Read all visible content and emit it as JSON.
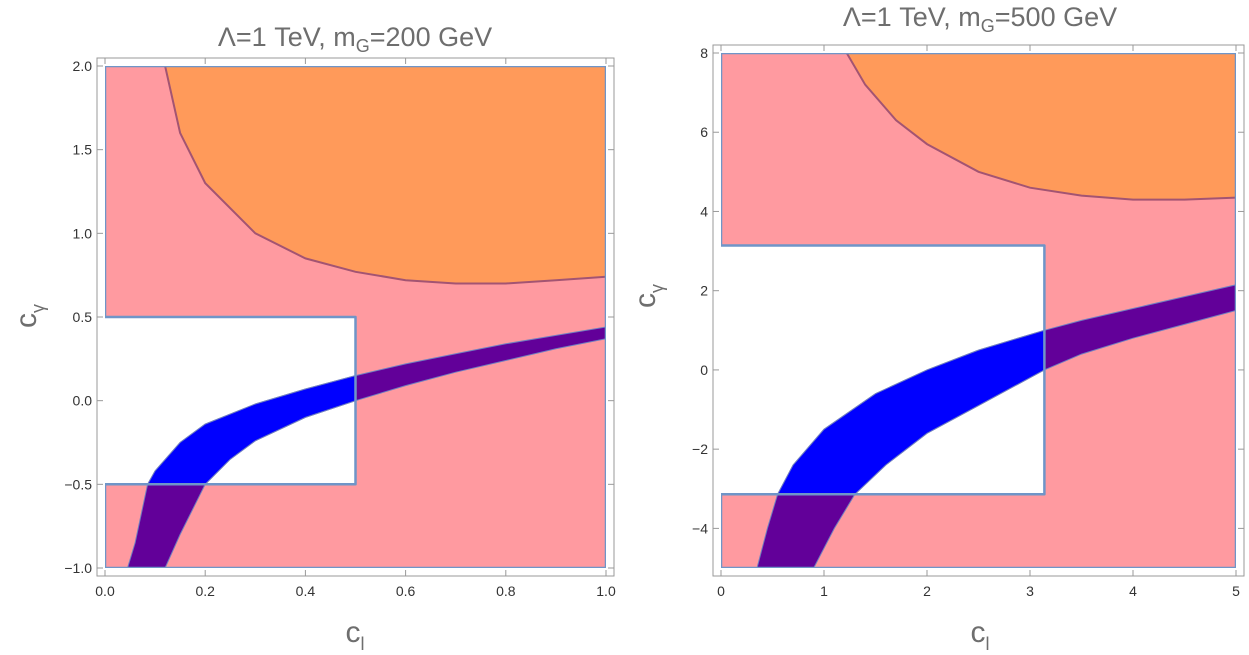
{
  "colors": {
    "excluded": "#ff9aa0",
    "orange_region": "#ff9a5a",
    "orange_boundary": "#a35472",
    "band_inside": "#0000ff",
    "band_outside": "#620099",
    "allowed_boundary": "#6f95c8",
    "band_edge": "#6f7fc0"
  },
  "chart_data": [
    {
      "type": "region",
      "title": {
        "main": "Λ=1 TeV, m",
        "sub": "G",
        "rest": "=200 GeV"
      },
      "xlabel": {
        "main": "c",
        "sub": "l"
      },
      "ylabel": {
        "main": "c",
        "sub": "γ"
      },
      "xlim": [
        0,
        1
      ],
      "ylim": [
        -1,
        2
      ],
      "xticks": [
        0,
        0.2,
        0.4,
        0.6,
        0.8,
        1
      ],
      "yticks": [
        -1,
        -0.5,
        0,
        0.5,
        1,
        1.5,
        2
      ],
      "xtick_labels": [
        "0.0",
        "0.2",
        "0.4",
        "0.6",
        "0.8",
        "1.0"
      ],
      "ytick_labels": [
        "−1.0",
        "−0.5",
        "0.0",
        "0.5",
        "1.0",
        "1.5",
        "2.0"
      ],
      "allowed_region": {
        "c_l_max": 0.5,
        "c_gamma_min": -0.5,
        "c_gamma_max": 0.5
      },
      "orange_boundary": [
        [
          0.12,
          2.0
        ],
        [
          0.15,
          1.6
        ],
        [
          0.2,
          1.3
        ],
        [
          0.3,
          1.0
        ],
        [
          0.4,
          0.85
        ],
        [
          0.5,
          0.77
        ],
        [
          0.6,
          0.72
        ],
        [
          0.7,
          0.7
        ],
        [
          0.8,
          0.7
        ],
        [
          0.9,
          0.72
        ],
        [
          1.0,
          0.74
        ]
      ],
      "band_upper": [
        [
          0.085,
          -0.5
        ],
        [
          0.1,
          -0.42
        ],
        [
          0.15,
          -0.25
        ],
        [
          0.2,
          -0.14
        ],
        [
          0.3,
          -0.02
        ],
        [
          0.4,
          0.07
        ],
        [
          0.5,
          0.15
        ],
        [
          0.6,
          0.22
        ],
        [
          0.7,
          0.28
        ],
        [
          0.8,
          0.34
        ],
        [
          0.9,
          0.39
        ],
        [
          1.0,
          0.44
        ]
      ],
      "band_lower": [
        [
          0.12,
          -1.0
        ],
        [
          0.15,
          -0.8
        ],
        [
          0.2,
          -0.5
        ],
        [
          0.25,
          -0.35
        ],
        [
          0.3,
          -0.24
        ],
        [
          0.4,
          -0.1
        ],
        [
          0.5,
          0.0
        ],
        [
          0.6,
          0.09
        ],
        [
          0.7,
          0.17
        ],
        [
          0.8,
          0.24
        ],
        [
          0.9,
          0.31
        ],
        [
          1.0,
          0.37
        ]
      ],
      "band_extension_upper": [
        [
          0.045,
          -1.0
        ],
        [
          0.06,
          -0.85
        ],
        [
          0.085,
          -0.5
        ]
      ],
      "band_extension_lower": [
        [
          0.12,
          -1.0
        ]
      ]
    },
    {
      "type": "region",
      "title": {
        "main": "Λ=1 TeV, m",
        "sub": "G",
        "rest": "=500 GeV"
      },
      "xlabel": {
        "main": "c",
        "sub": "l"
      },
      "ylabel": {
        "main": "c",
        "sub": "γ"
      },
      "xlim": [
        0,
        5
      ],
      "ylim": [
        -5,
        8
      ],
      "xticks": [
        0,
        1,
        2,
        3,
        4,
        5
      ],
      "yticks": [
        -4,
        -2,
        0,
        2,
        4,
        6,
        8
      ],
      "xtick_labels": [
        "0",
        "1",
        "2",
        "3",
        "4",
        "5"
      ],
      "ytick_labels": [
        "−4",
        "−2",
        "0",
        "2",
        "4",
        "6",
        "8"
      ],
      "allowed_region": {
        "c_l_max": 3.14,
        "c_gamma_min": -3.14,
        "c_gamma_max": 3.14
      },
      "orange_boundary": [
        [
          1.22,
          8.0
        ],
        [
          1.4,
          7.2
        ],
        [
          1.7,
          6.3
        ],
        [
          2.0,
          5.7
        ],
        [
          2.5,
          5.0
        ],
        [
          3.0,
          4.6
        ],
        [
          3.5,
          4.4
        ],
        [
          4.0,
          4.3
        ],
        [
          4.5,
          4.3
        ],
        [
          5.0,
          4.35
        ]
      ],
      "band_upper": [
        [
          0.55,
          -3.14
        ],
        [
          0.7,
          -2.4
        ],
        [
          1.0,
          -1.5
        ],
        [
          1.5,
          -0.6
        ],
        [
          2.0,
          0.0
        ],
        [
          2.5,
          0.5
        ],
        [
          3.14,
          1.0
        ],
        [
          3.5,
          1.25
        ],
        [
          4.0,
          1.55
        ],
        [
          4.5,
          1.85
        ],
        [
          5.0,
          2.15
        ]
      ],
      "band_lower": [
        [
          0.9,
          -5.0
        ],
        [
          1.1,
          -4.0
        ],
        [
          1.3,
          -3.14
        ],
        [
          1.6,
          -2.4
        ],
        [
          2.0,
          -1.6
        ],
        [
          2.5,
          -0.9
        ],
        [
          3.14,
          0.0
        ],
        [
          3.5,
          0.4
        ],
        [
          4.0,
          0.8
        ],
        [
          4.5,
          1.15
        ],
        [
          5.0,
          1.5
        ]
      ],
      "band_extension_upper": [
        [
          0.35,
          -5.0
        ],
        [
          0.45,
          -4.0
        ],
        [
          0.55,
          -3.14
        ]
      ],
      "band_extension_lower": [
        [
          0.9,
          -5.0
        ]
      ]
    }
  ]
}
